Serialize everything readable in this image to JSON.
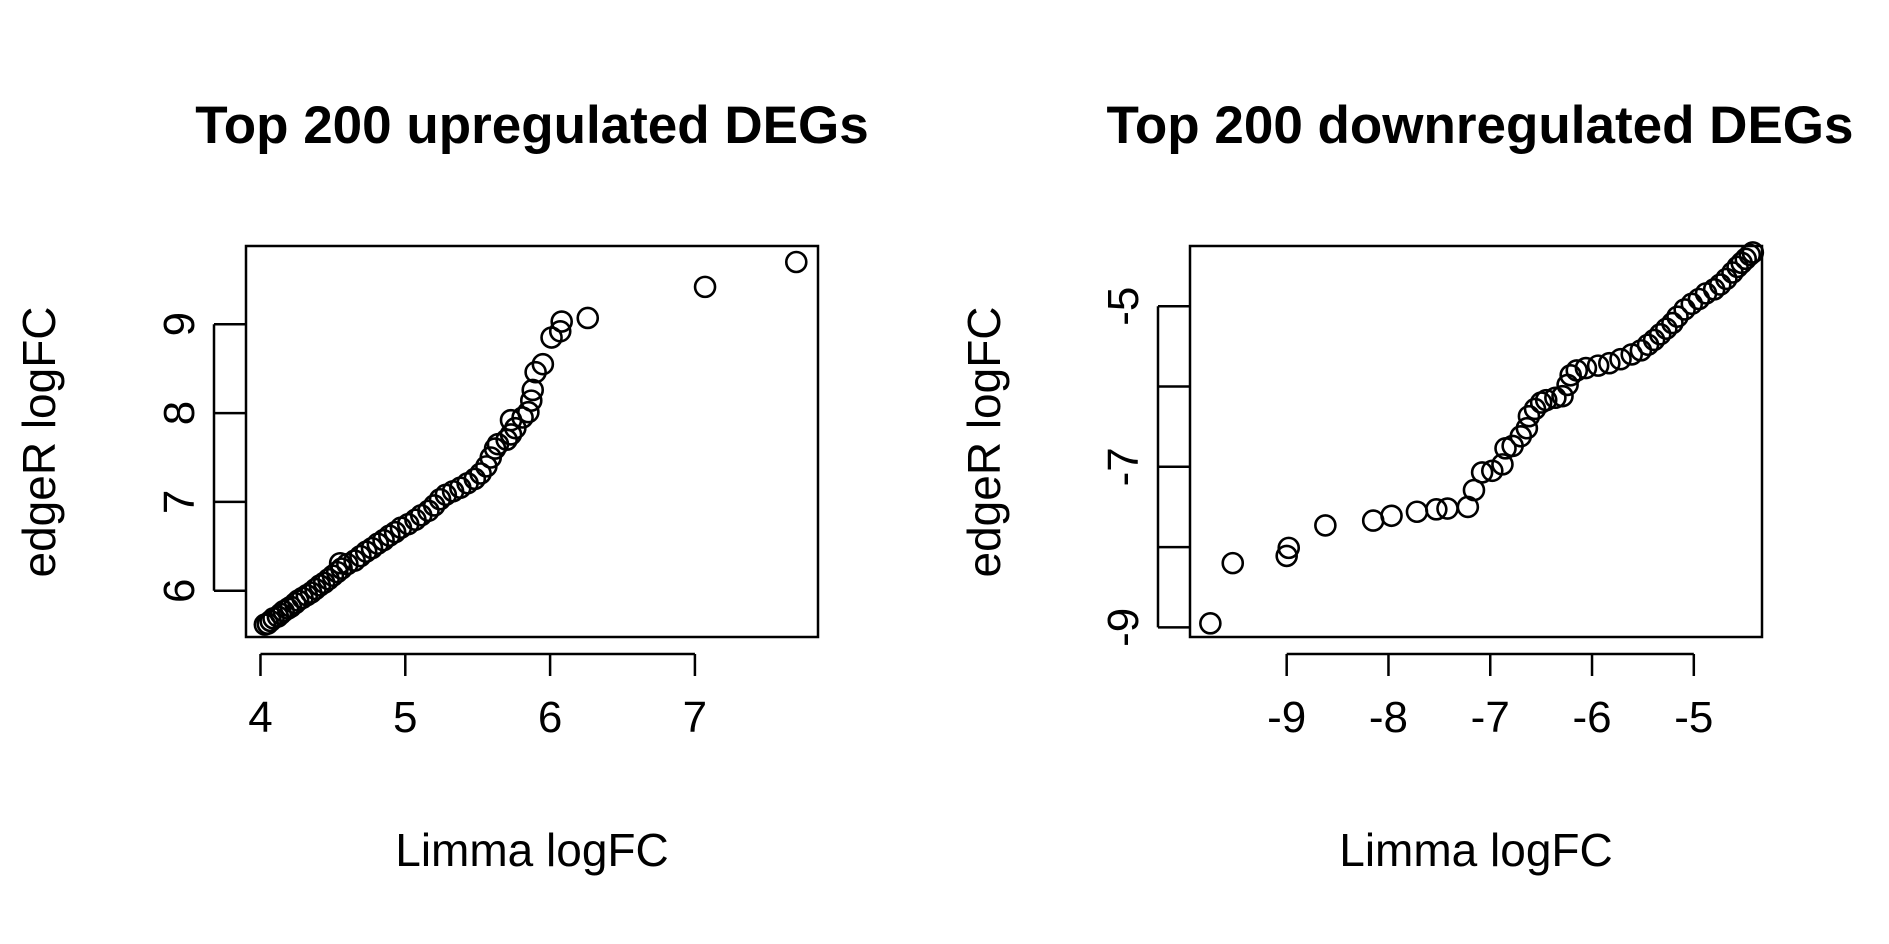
{
  "chart_data": [
    {
      "type": "scatter",
      "title": "Top 200 upregulated DEGs",
      "xlabel": "Limma logFC",
      "ylabel": "edgeR logFC",
      "xlim": [
        3.9,
        7.85
      ],
      "ylim": [
        5.48,
        9.88
      ],
      "xticks": [
        "4",
        "5",
        "6",
        "7"
      ],
      "yticks": [
        "6",
        "7",
        "8",
        "9"
      ],
      "points": [
        [
          4.03,
          5.62
        ],
        [
          4.05,
          5.63
        ],
        [
          4.07,
          5.66
        ],
        [
          4.09,
          5.69
        ],
        [
          4.12,
          5.71
        ],
        [
          4.14,
          5.74
        ],
        [
          4.16,
          5.77
        ],
        [
          4.19,
          5.8
        ],
        [
          4.21,
          5.82
        ],
        [
          4.24,
          5.86
        ],
        [
          4.26,
          5.89
        ],
        [
          4.29,
          5.92
        ],
        [
          4.32,
          5.95
        ],
        [
          4.35,
          5.98
        ],
        [
          4.38,
          6.02
        ],
        [
          4.41,
          6.06
        ],
        [
          4.44,
          6.09
        ],
        [
          4.47,
          6.13
        ],
        [
          4.5,
          6.17
        ],
        [
          4.53,
          6.21
        ],
        [
          4.56,
          6.25
        ],
        [
          4.6,
          6.3
        ],
        [
          4.55,
          6.31
        ],
        [
          4.65,
          6.34
        ],
        [
          4.69,
          6.39
        ],
        [
          4.73,
          6.44
        ],
        [
          4.77,
          6.48
        ],
        [
          4.81,
          6.53
        ],
        [
          4.85,
          6.57
        ],
        [
          4.89,
          6.62
        ],
        [
          4.93,
          6.66
        ],
        [
          4.97,
          6.71
        ],
        [
          5.02,
          6.75
        ],
        [
          5.07,
          6.8
        ],
        [
          5.11,
          6.85
        ],
        [
          5.16,
          6.9
        ],
        [
          5.2,
          6.96
        ],
        [
          5.24,
          7.03
        ],
        [
          5.28,
          7.08
        ],
        [
          5.33,
          7.12
        ],
        [
          5.38,
          7.16
        ],
        [
          5.43,
          7.21
        ],
        [
          5.48,
          7.26
        ],
        [
          5.52,
          7.32
        ],
        [
          5.56,
          7.4
        ],
        [
          5.59,
          7.5
        ],
        [
          5.62,
          7.6
        ],
        [
          5.64,
          7.65
        ],
        [
          5.7,
          7.7
        ],
        [
          5.73,
          7.76
        ],
        [
          5.76,
          7.83
        ],
        [
          5.73,
          7.92
        ],
        [
          5.81,
          7.95
        ],
        [
          5.85,
          8.01
        ],
        [
          5.87,
          8.14
        ],
        [
          5.88,
          8.26
        ],
        [
          5.9,
          8.46
        ],
        [
          5.95,
          8.55
        ],
        [
          6.01,
          8.85
        ],
        [
          6.07,
          8.92
        ],
        [
          6.08,
          9.03
        ],
        [
          6.26,
          9.07
        ],
        [
          7.07,
          9.42
        ],
        [
          7.7,
          9.7
        ]
      ]
    },
    {
      "type": "scatter",
      "title": "Top 200 downregulated DEGs",
      "xlabel": "Limma logFC",
      "ylabel": "edgeR logFC",
      "xlim": [
        -9.95,
        -4.33
      ],
      "ylim": [
        -9.12,
        -4.25
      ],
      "xticks": [
        "-9",
        "-8",
        "-7",
        "-6",
        "-5"
      ],
      "yticks": [
        "-9",
        "-7",
        "-5"
      ],
      "points": [
        [
          -9.75,
          -8.95
        ],
        [
          -9.53,
          -8.2
        ],
        [
          -9.0,
          -8.11
        ],
        [
          -8.98,
          -8.01
        ],
        [
          -8.62,
          -7.73
        ],
        [
          -8.15,
          -7.67
        ],
        [
          -7.97,
          -7.61
        ],
        [
          -7.72,
          -7.56
        ],
        [
          -7.53,
          -7.53
        ],
        [
          -7.42,
          -7.52
        ],
        [
          -7.22,
          -7.5
        ],
        [
          -7.16,
          -7.29
        ],
        [
          -7.08,
          -7.07
        ],
        [
          -6.98,
          -7.05
        ],
        [
          -6.88,
          -6.97
        ],
        [
          -6.85,
          -6.77
        ],
        [
          -6.78,
          -6.74
        ],
        [
          -6.7,
          -6.62
        ],
        [
          -6.64,
          -6.52
        ],
        [
          -6.62,
          -6.37
        ],
        [
          -6.56,
          -6.28
        ],
        [
          -6.5,
          -6.2
        ],
        [
          -6.45,
          -6.17
        ],
        [
          -6.36,
          -6.14
        ],
        [
          -6.29,
          -6.12
        ],
        [
          -6.24,
          -5.98
        ],
        [
          -6.21,
          -5.86
        ],
        [
          -6.15,
          -5.8
        ],
        [
          -6.06,
          -5.77
        ],
        [
          -5.94,
          -5.74
        ],
        [
          -5.83,
          -5.71
        ],
        [
          -5.72,
          -5.66
        ],
        [
          -5.61,
          -5.6
        ],
        [
          -5.52,
          -5.55
        ],
        [
          -5.45,
          -5.48
        ],
        [
          -5.39,
          -5.42
        ],
        [
          -5.33,
          -5.35
        ],
        [
          -5.27,
          -5.28
        ],
        [
          -5.21,
          -5.21
        ],
        [
          -5.16,
          -5.13
        ],
        [
          -5.09,
          -5.04
        ],
        [
          -5.02,
          -4.97
        ],
        [
          -4.95,
          -4.91
        ],
        [
          -4.88,
          -4.84
        ],
        [
          -4.8,
          -4.79
        ],
        [
          -4.74,
          -4.73
        ],
        [
          -4.68,
          -4.66
        ],
        [
          -4.62,
          -4.58
        ],
        [
          -4.57,
          -4.51
        ],
        [
          -4.53,
          -4.46
        ],
        [
          -4.49,
          -4.41
        ],
        [
          -4.45,
          -4.36
        ],
        [
          -4.42,
          -4.33
        ]
      ]
    }
  ]
}
